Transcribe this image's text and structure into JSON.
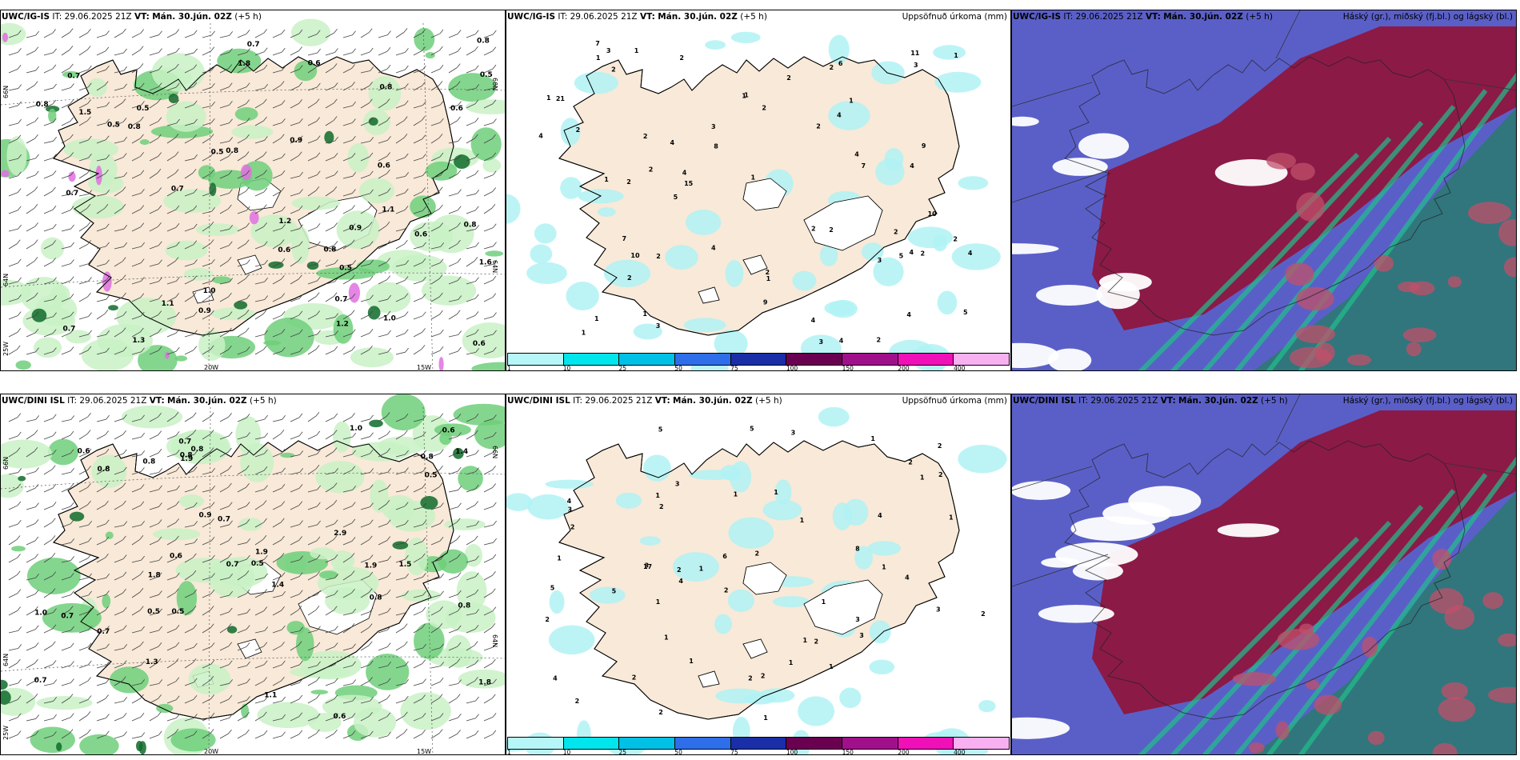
{
  "panels": [
    {
      "id": "p1",
      "model": "UWC/IG-IS",
      "it_label": "IT:",
      "it": "29.06.2025 21Z",
      "vt_label": "VT:",
      "vt": "Mán. 30.jún. 02Z",
      "lead": "(+5 h)",
      "right_title": "",
      "lat_labels": [
        "66N",
        "64N",
        "25W"
      ],
      "lon_labels": [
        "20W",
        "15W"
      ],
      "right_lat_labels": [
        "66N",
        "64N"
      ],
      "values": [
        "0.6",
        "0.5",
        "0.7",
        "1.0",
        "0.8",
        "0.9",
        "0.7",
        "0.5",
        "0.8",
        "1.1",
        "0.9",
        "0.6",
        "0.8",
        "0.7",
        "1.3",
        "0.8",
        "0.5",
        "0.6",
        "0.9",
        "1.0",
        "0.7",
        "1.6",
        "0.6",
        "0.8",
        "0.5",
        "0.6",
        "0.8",
        "1.2",
        "1.5",
        "1.8",
        "0.7",
        "0.6",
        "1.2",
        "1.1",
        "0.8",
        "0.5",
        "0.7"
      ]
    },
    {
      "id": "p2",
      "model": "UWC/IG-IS",
      "it_label": "IT:",
      "it": "29.06.2025 21Z",
      "vt_label": "VT:",
      "vt": "Mán. 30.jún. 02Z",
      "lead": "(+5 h)",
      "right_title": "Uppsöfnuð úrkoma (mm)",
      "values": [
        "2",
        "2",
        "1",
        "1",
        "2",
        "4",
        "2",
        "1",
        "3",
        "4",
        "2",
        "3",
        "4",
        "4",
        "3",
        "2",
        "2",
        "1",
        "2",
        "1",
        "2",
        "2",
        "4",
        "1",
        "1",
        "2",
        "3",
        "4",
        "7",
        "2",
        "9",
        "9",
        "5",
        "4",
        "4",
        "2",
        "21",
        "11",
        "15",
        "7",
        "5",
        "4",
        "10",
        "1",
        "2",
        "2",
        "8",
        "4",
        "6",
        "4",
        "5",
        "7",
        "3",
        "4",
        "1",
        "10",
        "2",
        "1",
        "1",
        "2",
        "3",
        "1",
        "1",
        "2",
        "2"
      ],
      "colorbar_ticks": [
        "1",
        "10",
        "25",
        "50",
        "75",
        "100",
        "150",
        "200",
        "400"
      ]
    },
    {
      "id": "p3",
      "model": "UWC/IG-IS",
      "it_label": "IT:",
      "it": "29.06.2025 21Z",
      "vt_label": "VT:",
      "vt": "Mán. 30.jún. 02Z",
      "lead": "(+5 h)",
      "right_title": "Háský (gr.), miðský (fj.bl.) og lágský (bl.)"
    },
    {
      "id": "p4",
      "model": "UWC/DINI ISL",
      "it_label": "IT:",
      "it": "29.06.2025 21Z",
      "vt_label": "VT:",
      "vt": "Mán. 30.jún. 02Z",
      "lead": "(+5 h)",
      "right_title": "",
      "lat_labels": [
        "66N",
        "64N",
        "25W"
      ],
      "lon_labels": [
        "20W",
        "15W"
      ],
      "right_lat_labels": [
        "66N",
        "64N"
      ],
      "values": [
        "0.5",
        "1.0",
        "0.6",
        "0.6",
        "0.6",
        "0.5",
        "0.7",
        "1.8",
        "0.8",
        "0.6",
        "0.5",
        "0.7",
        "0.9",
        "0.8",
        "0.7",
        "1.0",
        "0.8",
        "0.7",
        "1.8",
        "1.4",
        "1.4",
        "0.8",
        "0.8",
        "1.9",
        "0.8",
        "0.7",
        "1.5",
        "1.1",
        "2.9",
        "1.9",
        "1.3",
        "0.5",
        "0.7",
        "0.8",
        "1.9"
      ]
    },
    {
      "id": "p5",
      "model": "UWC/DINI ISL",
      "it_label": "IT:",
      "it": "29.06.2025 21Z",
      "vt_label": "VT:",
      "vt": "Mán. 30.jún. 02Z",
      "lead": "(+5 h)",
      "right_title": "Uppsöfnuð úrkoma (mm)",
      "values": [
        "3",
        "2",
        "1",
        "1",
        "1",
        "1",
        "2",
        "2",
        "3",
        "2",
        "2",
        "3",
        "1",
        "1",
        "1",
        "2",
        "1",
        "1",
        "1",
        "1",
        "1",
        "3",
        "2",
        "1",
        "2",
        "1",
        "4",
        "2",
        "5",
        "5",
        "6",
        "4",
        "4",
        "17",
        "5",
        "3",
        "2",
        "8",
        "1",
        "1",
        "5",
        "3",
        "4",
        "2",
        "2",
        "2",
        "3",
        "4",
        "2",
        "1",
        "2",
        "2",
        "1"
      ],
      "colorbar_ticks": [
        "1",
        "10",
        "25",
        "50",
        "75",
        "100",
        "150",
        "200",
        "400"
      ]
    },
    {
      "id": "p6",
      "model": "UWC/DINI ISL",
      "it_label": "IT:",
      "it": "29.06.2025 21Z",
      "vt_label": "VT:",
      "vt": "Mán. 30.jún. 02Z",
      "lead": "(+5 h)",
      "right_title": "Háský (gr.), miðský (fj.bl.) og lágský (bl.)"
    }
  ],
  "colors": {
    "land": "#f8e9d8",
    "land_dark": "#e6d8c8",
    "green_light": "#c9f1c6",
    "green_mid": "#6fcf7a",
    "green_dark": "#0f6b2a",
    "magenta": "#e070e0",
    "cyan_light": "#b0f2f5",
    "cloud_blue": "#5a5fc8",
    "cloud_red": "#8e1640",
    "cloud_green": "#20c08a",
    "colorbar": [
      "#b6f6f8",
      "#00e6ec",
      "#00c0e6",
      "#2e6ee8",
      "#1a2ea8",
      "#6a0050",
      "#a0108a",
      "#f010b8",
      "#f8b0f0"
    ]
  }
}
